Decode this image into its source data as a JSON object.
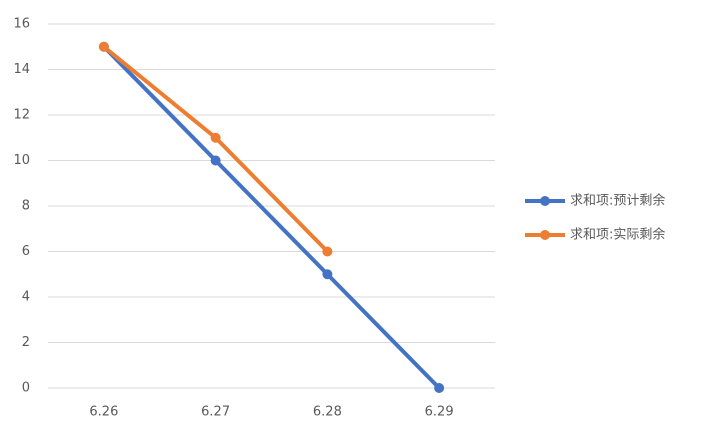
{
  "chart_data": {
    "type": "line",
    "categories": [
      "6.26",
      "6.27",
      "6.28",
      "6.29"
    ],
    "series": [
      {
        "name": "求和项:预计剩余",
        "color": "#4472c4",
        "values": [
          15,
          10,
          5,
          0
        ]
      },
      {
        "name": "求和项:实际剩余",
        "color": "#ed7d31",
        "values": [
          15,
          11,
          6,
          null
        ]
      }
    ],
    "ylim": [
      0,
      16
    ],
    "yticks": [
      0,
      2,
      4,
      6,
      8,
      10,
      12,
      14,
      16
    ],
    "grid": true,
    "legend": "right"
  }
}
